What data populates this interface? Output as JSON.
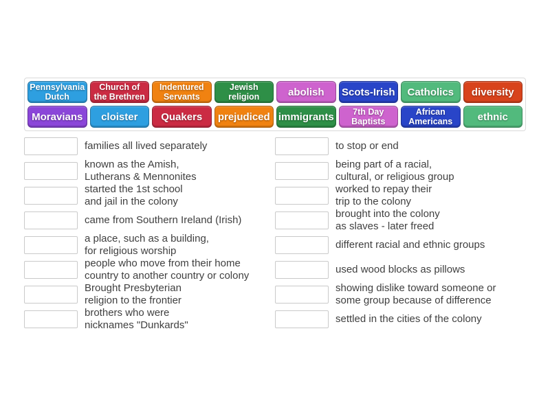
{
  "colors": {
    "panel_border": "#d9d9d9",
    "slot_border": "#c9c9c9",
    "definition_text": "#3f3f3f",
    "tile_text": "#ffffff"
  },
  "word_bank": {
    "tiles": [
      {
        "label": "Pennsylvania\nDutch",
        "color": "#2e9fe0"
      },
      {
        "label": "Church of\nthe Brethren",
        "color": "#cb2b43"
      },
      {
        "label": "Indentured\nServants",
        "color": "#f08211"
      },
      {
        "label": "Jewish\nreligion",
        "color": "#2e8f47"
      },
      {
        "label": "abolish",
        "color": "#ce63ce"
      },
      {
        "label": "Scots-Irish",
        "color": "#2945c8"
      },
      {
        "label": "Catholics",
        "color": "#52ba7d"
      },
      {
        "label": "diversity",
        "color": "#d8431c"
      },
      {
        "label": "Moravians",
        "color": "#8b46d9"
      },
      {
        "label": "cloister",
        "color": "#2e9fe0"
      },
      {
        "label": "Quakers",
        "color": "#cb2b43"
      },
      {
        "label": "prejudiced",
        "color": "#f08211"
      },
      {
        "label": "immigrants",
        "color": "#2e8f47"
      },
      {
        "label": "7th Day\nBaptists",
        "color": "#ce63ce"
      },
      {
        "label": "African\nAmericans",
        "color": "#2945c8"
      },
      {
        "label": "ethnic",
        "color": "#52ba7d"
      }
    ]
  },
  "left_column": {
    "items": [
      {
        "definition": "families all lived separately"
      },
      {
        "definition": "known as the Amish,\nLutherans & Mennonites"
      },
      {
        "definition": "started the 1st school\nand jail in the colony"
      },
      {
        "definition": "came from Southern Ireland (Irish)"
      },
      {
        "definition": "a place, such as a building,\nfor religious worship"
      },
      {
        "definition": "people who move from their home\ncountry to another country or colony"
      },
      {
        "definition": "Brought Presbyterian\nreligion to the frontier"
      },
      {
        "definition": "brothers who were\nnicknames \"Dunkards\""
      }
    ]
  },
  "right_column": {
    "items": [
      {
        "definition": "to stop or end"
      },
      {
        "definition": "being part of a racial,\ncultural, or religious group"
      },
      {
        "definition": "worked to repay their\ntrip to the colony"
      },
      {
        "definition": "brought into the colony\nas slaves - later freed"
      },
      {
        "definition": "different racial and ethnic groups"
      },
      {
        "definition": "used wood blocks as pillows"
      },
      {
        "definition": "showing dislike toward someone or\nsome group because of difference"
      },
      {
        "definition": "settled in the cities of the colony"
      }
    ]
  }
}
